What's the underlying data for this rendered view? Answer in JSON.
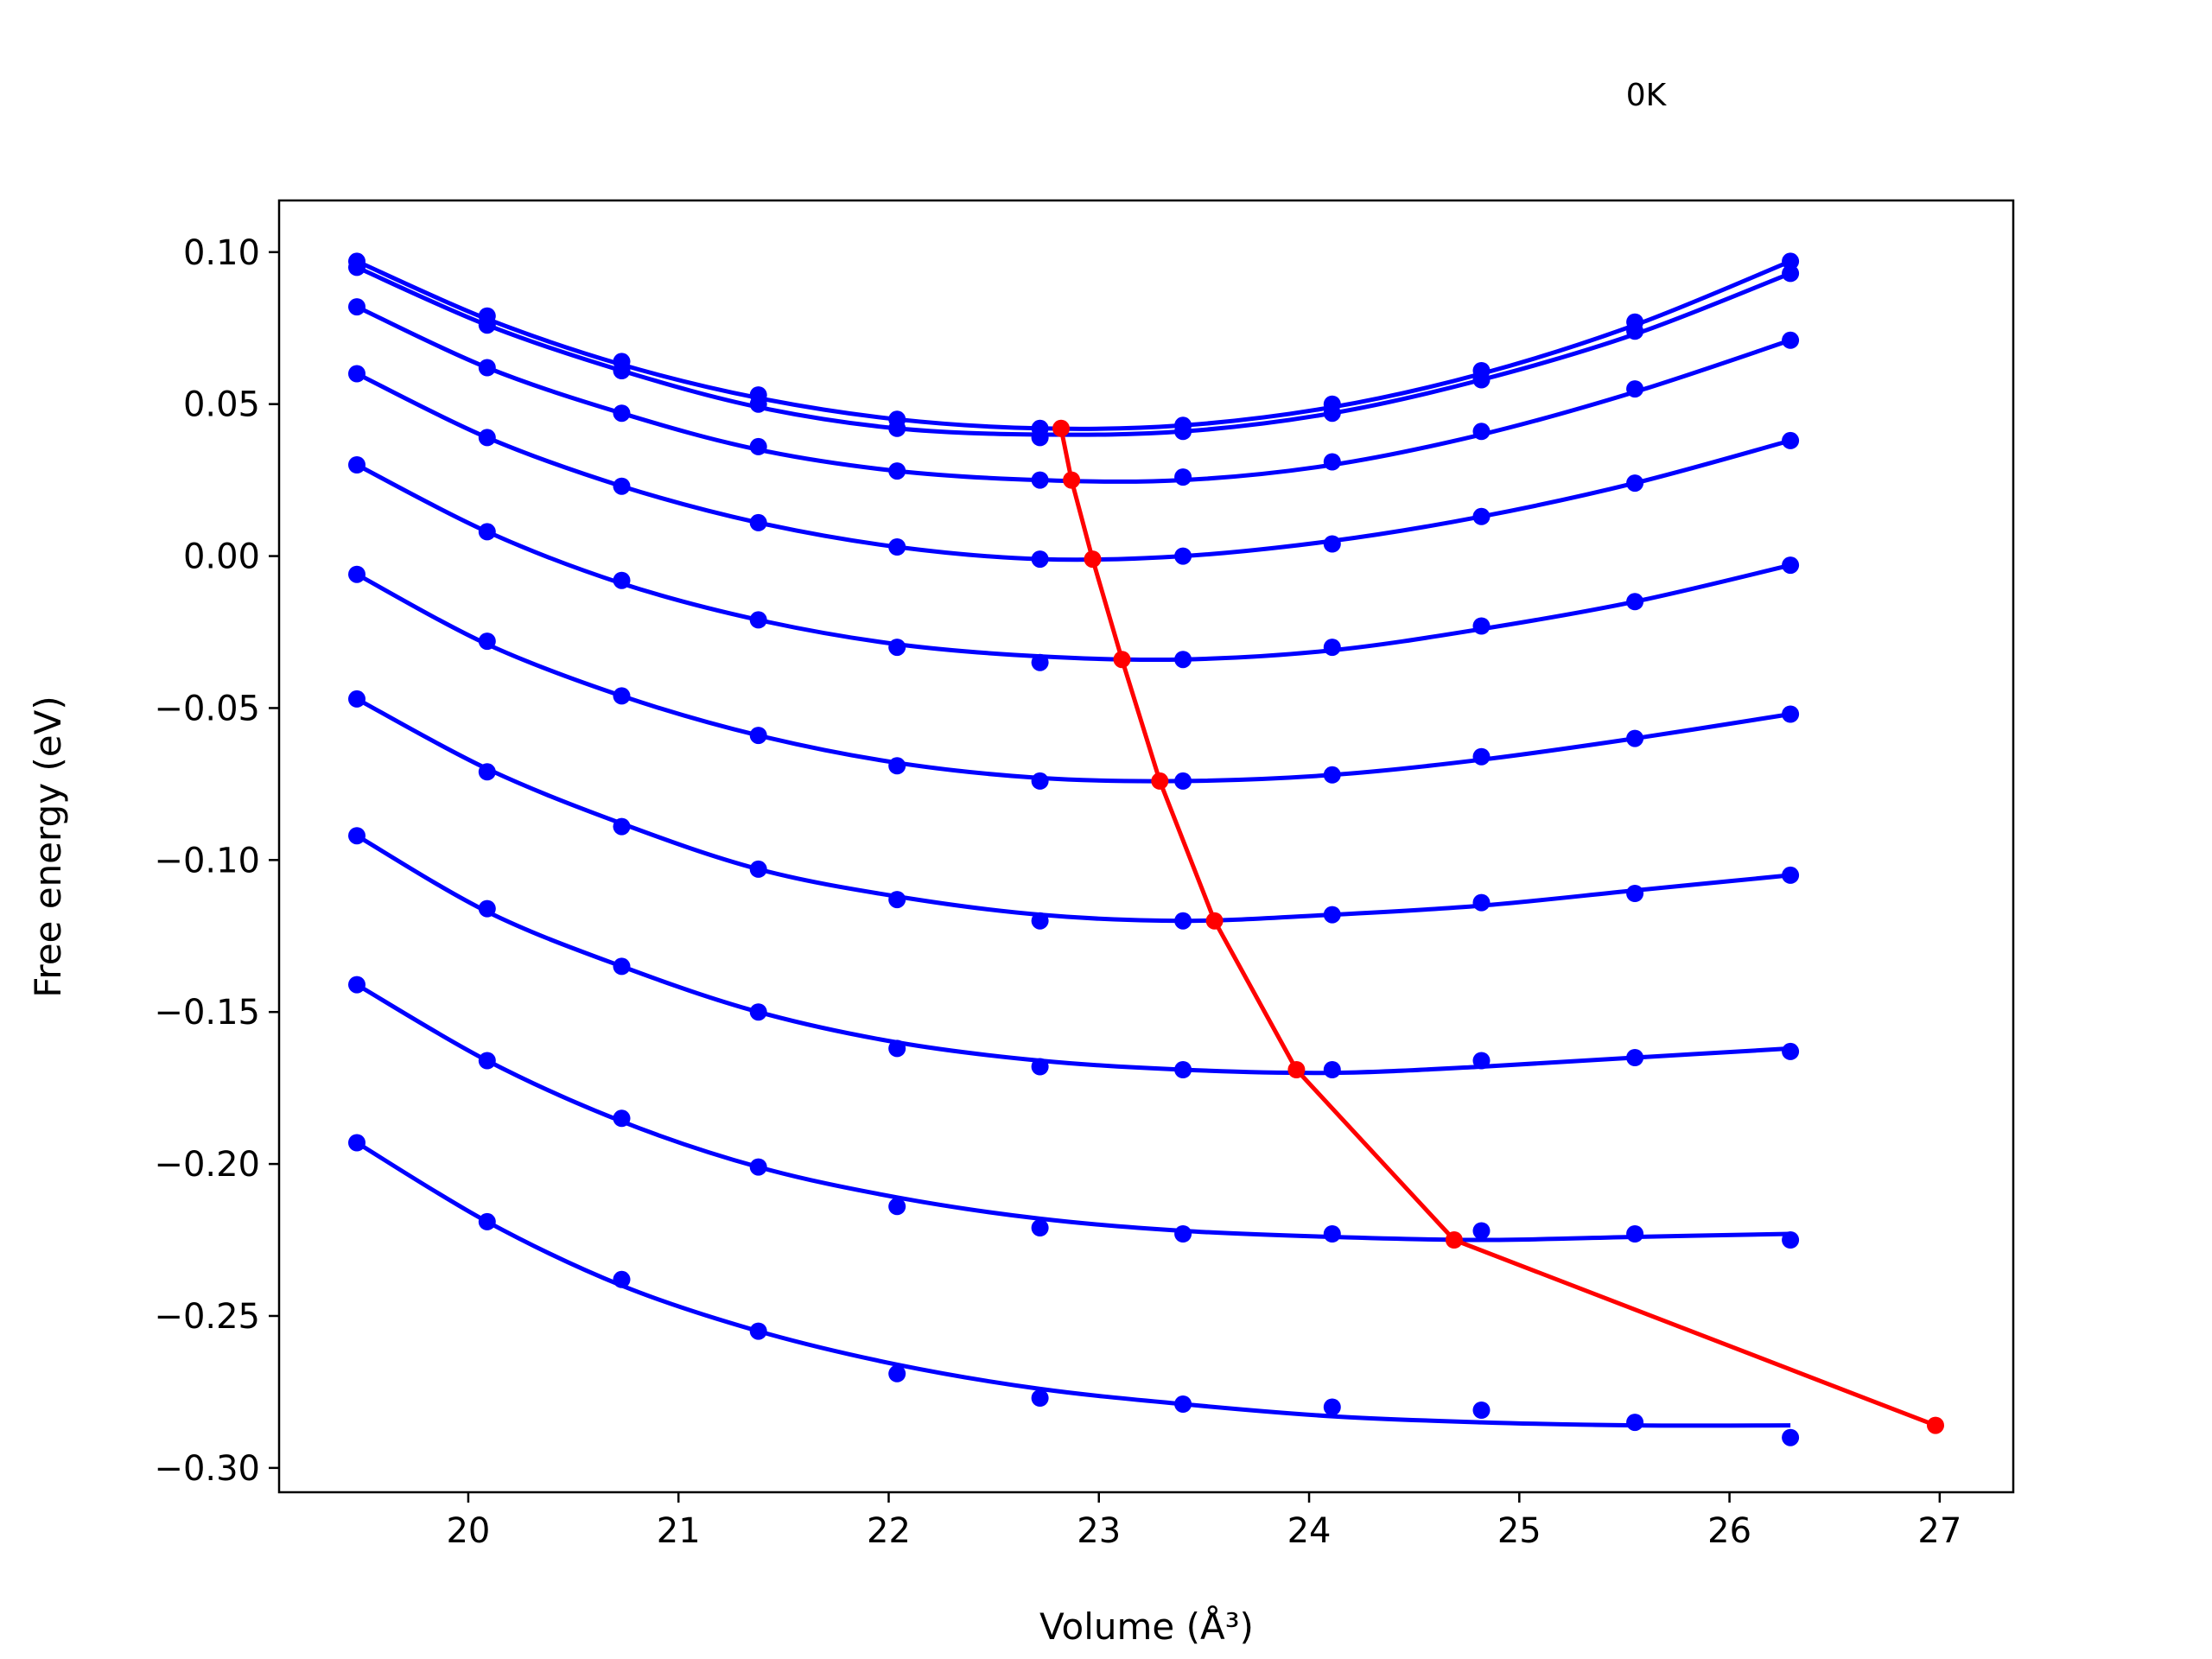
{
  "chart_data": {
    "type": "line",
    "title": "",
    "corner_label": "0K",
    "xlabel": "Volume (Å³)",
    "ylabel": "Free energy (eV)",
    "xlim": [
      19.1,
      27.35
    ],
    "ylim": [
      -0.308,
      0.117
    ],
    "xticks": [
      20,
      21,
      22,
      23,
      24,
      25,
      26,
      27
    ],
    "xtick_labels": [
      "20",
      "21",
      "22",
      "23",
      "24",
      "25",
      "26",
      "27"
    ],
    "yticks": [
      0.1,
      0.05,
      0.0,
      -0.05,
      -0.1,
      -0.15,
      -0.2,
      -0.25,
      -0.3
    ],
    "ytick_labels": [
      "0.10",
      "0.05",
      "0.00",
      "−0.05",
      "−0.10",
      "−0.15",
      "−0.20",
      "−0.25",
      "−0.30"
    ],
    "grid": false,
    "legend": "none",
    "volumes": [
      19.47,
      20.09,
      20.73,
      21.38,
      22.04,
      22.72,
      23.4,
      24.11,
      24.82,
      25.55,
      26.29
    ],
    "series": [
      {
        "color": "#0000ff",
        "points": [
          0.097,
          0.079,
          0.064,
          0.053,
          0.045,
          0.042,
          0.043,
          0.05,
          0.061,
          0.077,
          0.097
        ],
        "fit": [
          0.097,
          0.078,
          0.063,
          0.052,
          0.045,
          0.042,
          0.043,
          0.049,
          0.06,
          0.076,
          0.097
        ]
      },
      {
        "color": "#0000ff",
        "points": [
          0.095,
          0.076,
          0.061,
          0.05,
          0.042,
          0.039,
          0.041,
          0.047,
          0.058,
          0.074,
          0.093
        ],
        "fit": [
          0.095,
          0.076,
          0.061,
          0.049,
          0.042,
          0.04,
          0.041,
          0.047,
          0.058,
          0.073,
          0.093
        ]
      },
      {
        "color": "#0000ff",
        "points": [
          0.082,
          0.062,
          0.047,
          0.036,
          0.028,
          0.025,
          0.026,
          0.031,
          0.041,
          0.055,
          0.071
        ],
        "fit": [
          0.082,
          0.062,
          0.047,
          0.035,
          0.028,
          0.025,
          0.025,
          0.03,
          0.04,
          0.054,
          0.071
        ]
      },
      {
        "color": "#0000ff",
        "points": [
          0.03,
          0.008,
          -0.008,
          -0.021,
          -0.03,
          -0.035,
          -0.034,
          -0.03,
          -0.023,
          -0.015,
          -0.003
        ],
        "fit": [
          0.03,
          0.008,
          -0.009,
          -0.021,
          -0.029,
          -0.033,
          -0.034,
          -0.031,
          -0.024,
          -0.015,
          -0.003
        ]
      },
      {
        "color": "#0000ff",
        "points": [
          0.06,
          0.039,
          0.023,
          0.011,
          0.003,
          -0.001,
          0.0,
          0.004,
          0.013,
          0.024,
          0.038
        ],
        "fit": [
          0.06,
          0.039,
          0.023,
          0.011,
          0.003,
          -0.001,
          0.0,
          0.005,
          0.013,
          0.024,
          0.038
        ]
      },
      {
        "color": "#0000ff",
        "points": [
          -0.006,
          -0.028,
          -0.046,
          -0.059,
          -0.069,
          -0.074,
          -0.074,
          -0.072,
          -0.066,
          -0.06,
          -0.052
        ],
        "fit": [
          -0.006,
          -0.029,
          -0.046,
          -0.059,
          -0.068,
          -0.073,
          -0.074,
          -0.072,
          -0.067,
          -0.06,
          -0.052
        ]
      },
      {
        "color": "#0000ff",
        "points": [
          -0.047,
          -0.071,
          -0.089,
          -0.103,
          -0.113,
          -0.12,
          -0.12,
          -0.118,
          -0.114,
          -0.111,
          -0.105
        ],
        "fit": [
          -0.047,
          -0.07,
          -0.088,
          -0.103,
          -0.112,
          -0.118,
          -0.12,
          -0.118,
          -0.115,
          -0.11,
          -0.105
        ]
      },
      {
        "color": "#0000ff",
        "points": [
          -0.092,
          -0.116,
          -0.135,
          -0.15,
          -0.162,
          -0.168,
          -0.169,
          -0.169,
          -0.166,
          -0.165,
          -0.163
        ],
        "fit": [
          -0.092,
          -0.117,
          -0.135,
          -0.15,
          -0.16,
          -0.166,
          -0.169,
          -0.17,
          -0.168,
          -0.165,
          -0.162
        ]
      },
      {
        "color": "#0000ff",
        "points": [
          -0.141,
          -0.166,
          -0.185,
          -0.201,
          -0.214,
          -0.221,
          -0.223,
          -0.223,
          -0.222,
          -0.223,
          -0.225
        ],
        "fit": [
          -0.141,
          -0.166,
          -0.186,
          -0.201,
          -0.211,
          -0.218,
          -0.222,
          -0.224,
          -0.225,
          -0.224,
          -0.223
        ]
      },
      {
        "color": "#0000ff",
        "points": [
          -0.193,
          -0.219,
          -0.238,
          -0.255,
          -0.269,
          -0.277,
          -0.279,
          -0.28,
          -0.281,
          -0.285,
          -0.29
        ],
        "fit": [
          -0.193,
          -0.219,
          -0.24,
          -0.255,
          -0.266,
          -0.274,
          -0.279,
          -0.283,
          -0.285,
          -0.286,
          -0.286
        ]
      }
    ],
    "minimum_path": {
      "color": "#ff0000",
      "x": [
        22.82,
        22.87,
        22.97,
        23.11,
        23.29,
        23.55,
        23.94,
        24.69,
        26.98
      ],
      "y": [
        0.042,
        0.025,
        -0.001,
        -0.034,
        -0.074,
        -0.12,
        -0.169,
        -0.225,
        -0.286
      ]
    }
  }
}
